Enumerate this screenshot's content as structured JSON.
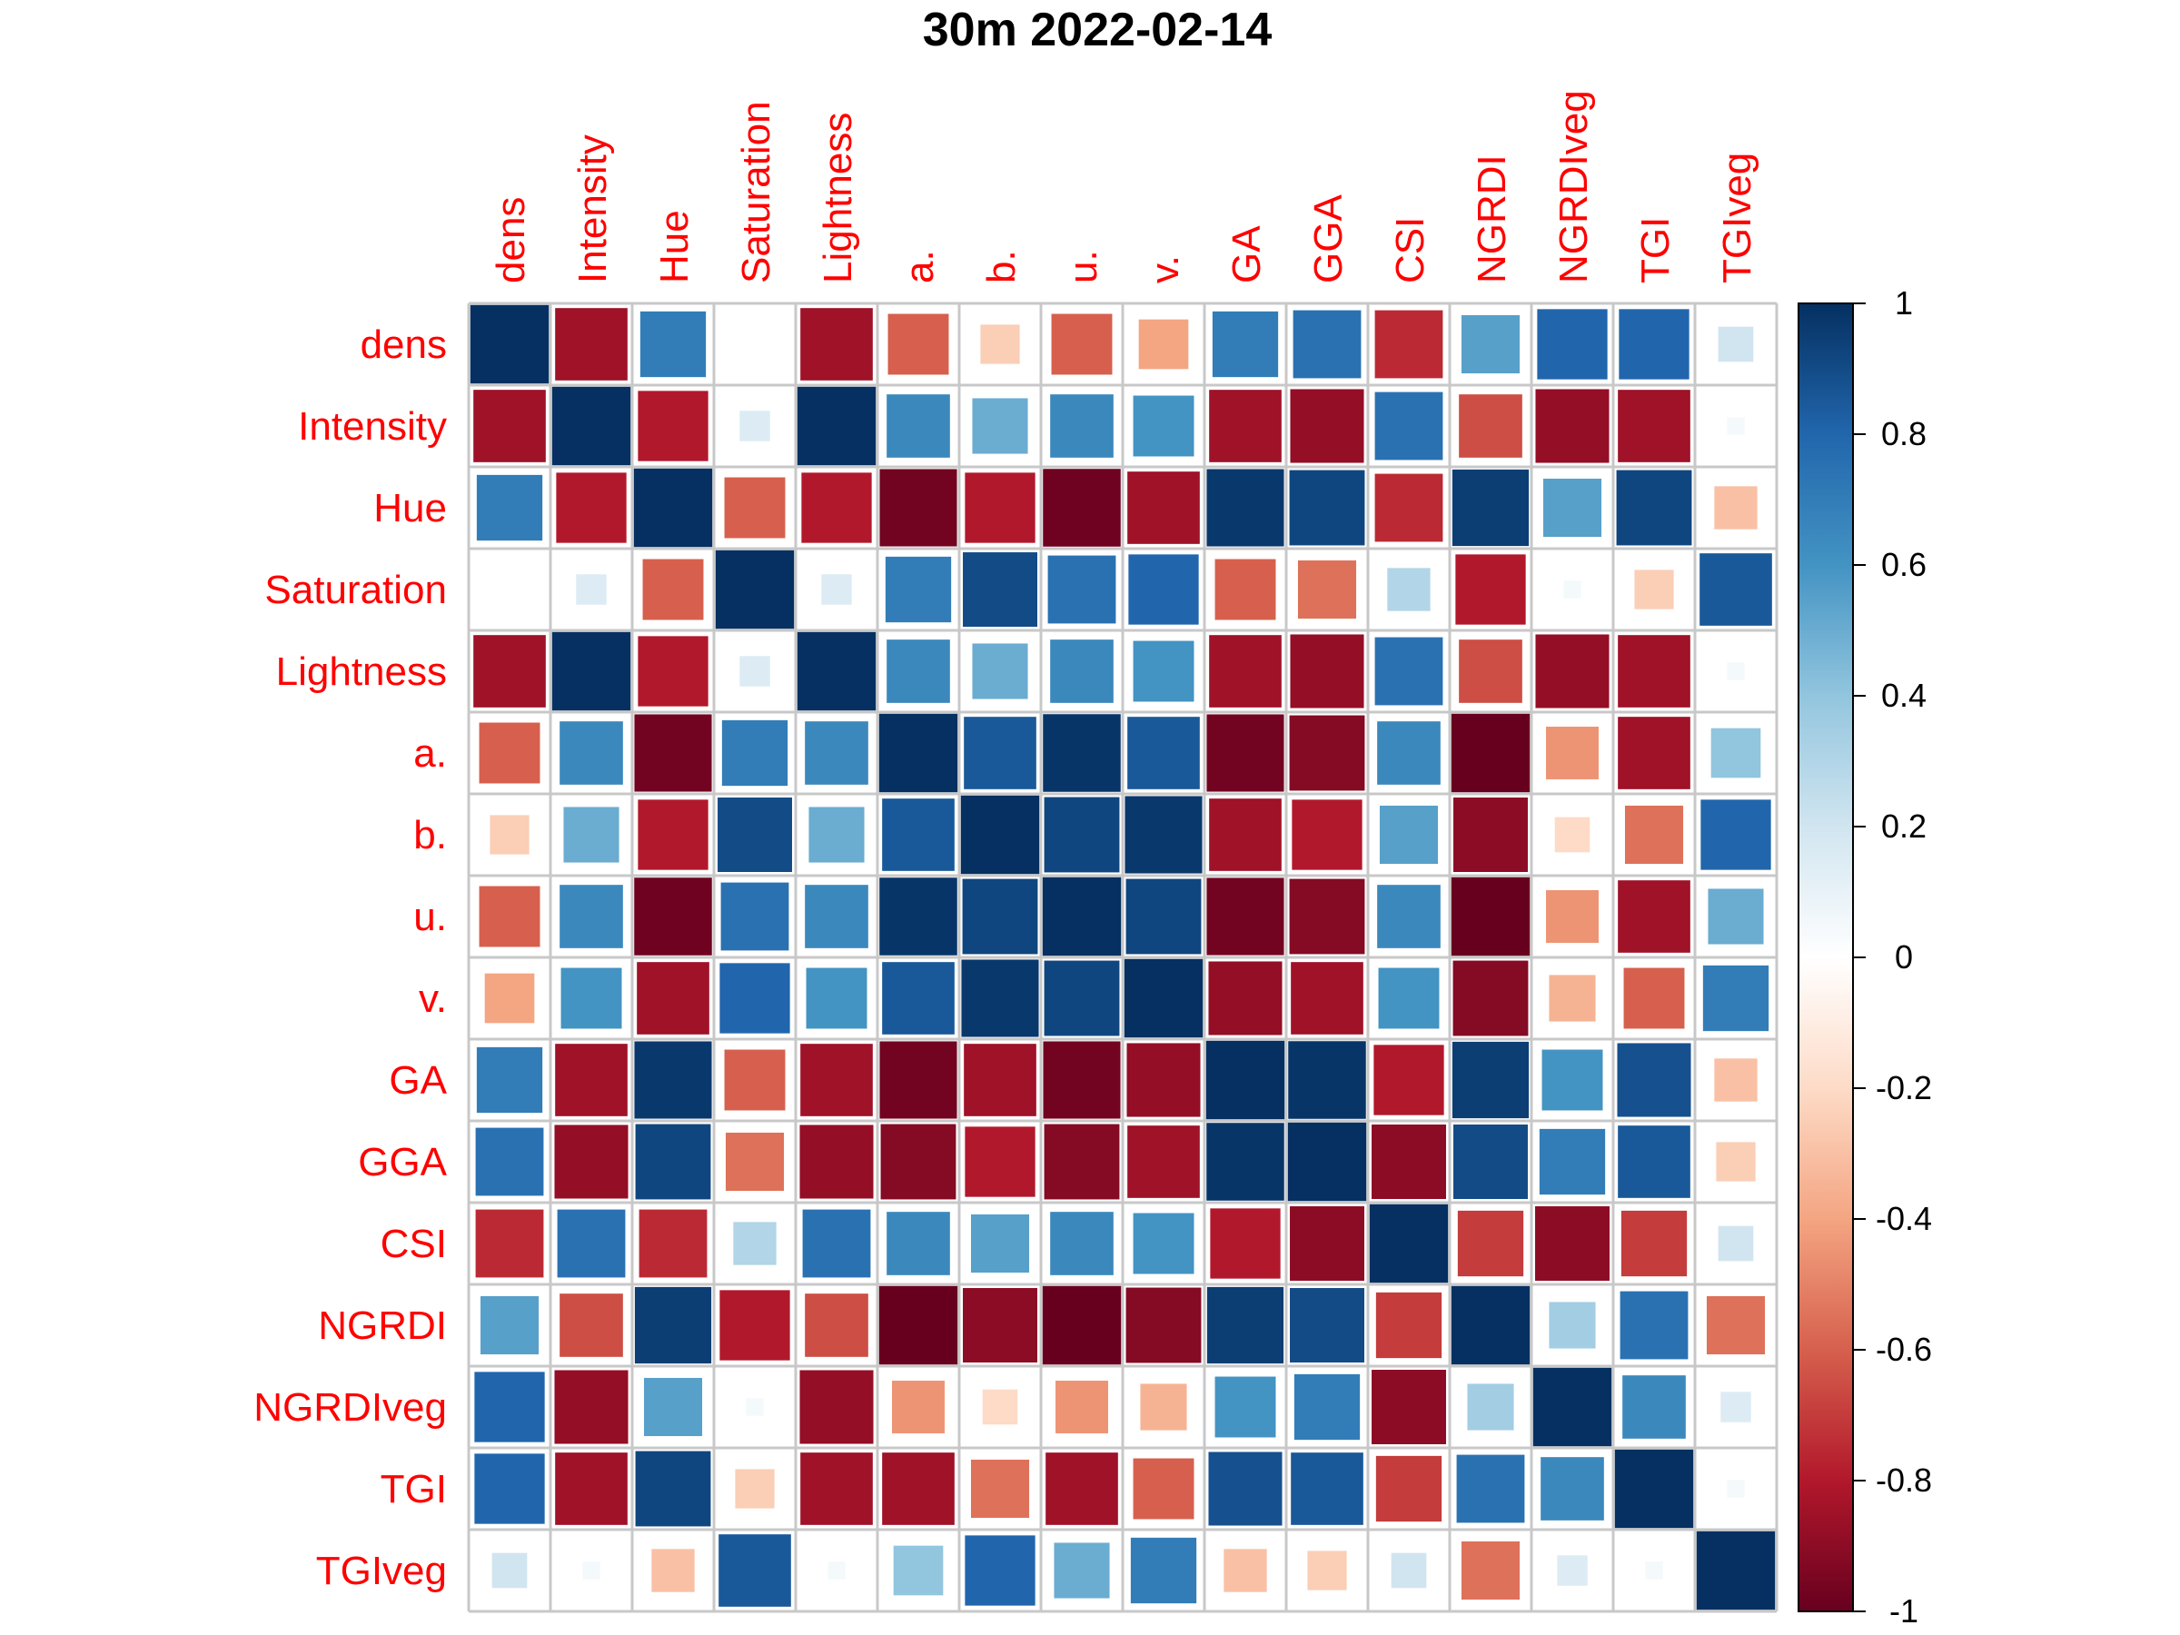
{
  "chart_data": {
    "type": "heatmap",
    "title": "30m 2022-02-14",
    "variables": [
      "dens",
      "Intensity",
      "Hue",
      "Saturation",
      "Lightness",
      "a.",
      "b.",
      "u.",
      "v.",
      "GA",
      "GGA",
      "CSI",
      "NGRDI",
      "NGRDIveg",
      "TGI",
      "TGIveg"
    ],
    "matrix": [
      [
        1.0,
        -0.85,
        0.7,
        0.0,
        -0.85,
        -0.6,
        -0.25,
        -0.6,
        -0.4,
        0.7,
        0.75,
        -0.75,
        0.55,
        0.8,
        0.8,
        0.2
      ],
      [
        -0.85,
        1.0,
        -0.8,
        0.15,
        1.0,
        0.65,
        0.5,
        0.65,
        0.6,
        -0.85,
        -0.88,
        0.75,
        -0.65,
        -0.88,
        -0.85,
        0.05
      ],
      [
        0.7,
        -0.8,
        1.0,
        -0.6,
        -0.8,
        -0.97,
        -0.8,
        -0.98,
        -0.85,
        0.97,
        0.92,
        -0.75,
        0.95,
        0.55,
        0.92,
        -0.3
      ],
      [
        0.0,
        0.15,
        -0.6,
        1.0,
        0.15,
        0.7,
        0.9,
        0.75,
        0.8,
        -0.6,
        -0.55,
        0.3,
        -0.8,
        0.05,
        -0.25,
        0.85
      ],
      [
        -0.85,
        1.0,
        -0.8,
        0.15,
        1.0,
        0.65,
        0.5,
        0.65,
        0.6,
        -0.85,
        -0.88,
        0.75,
        -0.65,
        -0.88,
        -0.85,
        0.05
      ],
      [
        -0.6,
        0.65,
        -0.97,
        0.7,
        0.65,
        1.0,
        0.85,
        0.98,
        0.85,
        -0.97,
        -0.92,
        0.65,
        -1.0,
        -0.45,
        -0.85,
        0.4
      ],
      [
        -0.25,
        0.5,
        -0.8,
        0.9,
        0.5,
        0.85,
        1.0,
        0.92,
        0.97,
        -0.85,
        -0.8,
        0.55,
        -0.9,
        -0.2,
        -0.55,
        0.8
      ],
      [
        -0.6,
        0.65,
        -0.98,
        0.75,
        0.65,
        0.98,
        0.92,
        1.0,
        0.92,
        -0.97,
        -0.92,
        0.65,
        -1.0,
        -0.45,
        -0.85,
        0.5
      ],
      [
        -0.4,
        0.6,
        -0.85,
        0.8,
        0.6,
        0.85,
        0.97,
        0.92,
        1.0,
        -0.88,
        -0.85,
        0.6,
        -0.92,
        -0.35,
        -0.6,
        0.7
      ],
      [
        0.7,
        -0.85,
        0.97,
        -0.6,
        -0.85,
        -0.97,
        -0.85,
        -0.97,
        -0.88,
        1.0,
        0.98,
        -0.8,
        0.95,
        0.6,
        0.88,
        -0.3
      ],
      [
        0.75,
        -0.88,
        0.92,
        -0.55,
        -0.88,
        -0.92,
        -0.8,
        -0.92,
        -0.85,
        0.98,
        1.0,
        -0.9,
        0.9,
        0.7,
        0.85,
        -0.25
      ],
      [
        -0.75,
        0.75,
        -0.75,
        0.3,
        0.75,
        0.65,
        0.55,
        0.65,
        0.6,
        -0.8,
        -0.9,
        1.0,
        -0.7,
        -0.9,
        -0.7,
        0.2
      ],
      [
        0.55,
        -0.65,
        0.95,
        -0.8,
        -0.65,
        -1.0,
        -0.9,
        -1.0,
        -0.92,
        0.95,
        0.9,
        -0.7,
        1.0,
        0.35,
        0.75,
        -0.55
      ],
      [
        0.8,
        -0.88,
        0.55,
        0.05,
        -0.88,
        -0.45,
        -0.2,
        -0.45,
        -0.35,
        0.6,
        0.7,
        -0.9,
        0.35,
        1.0,
        0.65,
        0.15
      ],
      [
        0.8,
        -0.85,
        0.92,
        -0.25,
        -0.85,
        -0.85,
        -0.55,
        -0.85,
        -0.6,
        0.88,
        0.85,
        -0.7,
        0.75,
        0.65,
        1.0,
        0.05
      ],
      [
        0.2,
        0.05,
        -0.3,
        0.85,
        0.05,
        0.4,
        0.8,
        0.5,
        0.7,
        -0.3,
        -0.25,
        0.2,
        -0.55,
        0.15,
        0.05,
        1.0
      ]
    ],
    "colorbar": {
      "range": [
        -1,
        1
      ],
      "ticks": [
        "1",
        "0.8",
        "0.6",
        "0.4",
        "0.2",
        "0",
        "-0.2",
        "-0.4",
        "-0.6",
        "-0.8",
        "-1"
      ],
      "colors": [
        "#67001F",
        "#B2182B",
        "#D6604D",
        "#F4A582",
        "#FDDBC7",
        "#FFFFFF",
        "#D1E5F0",
        "#92C5DE",
        "#4393C3",
        "#2166AC",
        "#053061"
      ]
    },
    "xlabel": "",
    "ylabel": "",
    "label_color": "#FF0000",
    "grid": true
  }
}
